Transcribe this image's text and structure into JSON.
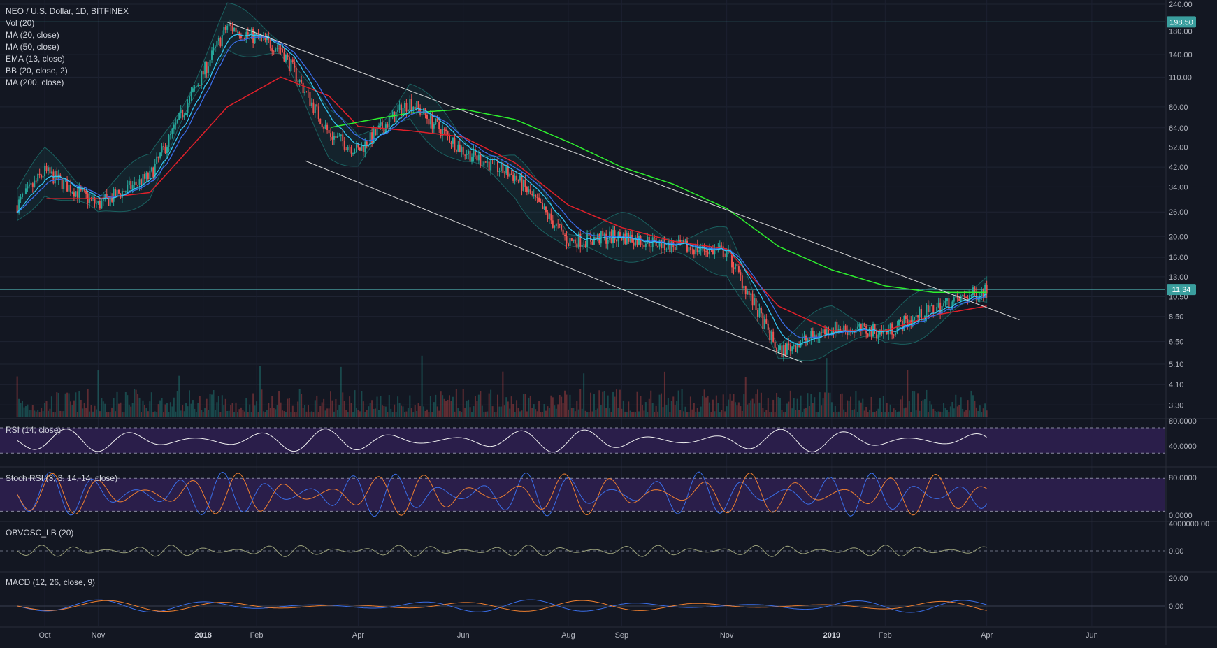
{
  "header": {
    "title": "NEO / U.S. Dollar, 1D, BITFINEX",
    "indicators": [
      "Vol (20)",
      "MA (20, close)",
      "MA (50, close)",
      "EMA (13, close)",
      "BB (20, close, 2)",
      "MA (200, close)"
    ]
  },
  "panes": {
    "rsi_label": "RSI (14, close)",
    "stoch_label": "Stoch RSI (3, 3, 14, 14, close)",
    "obv_label": "OBVOSC_LB (20)",
    "macd_label": "MACD (12, 26, close, 9)"
  },
  "colors": {
    "background": "#131722",
    "up": "#26a69a",
    "down": "#ef5350",
    "ma200": "#2ef02e",
    "ma50": "#e0202a",
    "ema13": "#33c3f0",
    "ma20": "#3a6ee8",
    "bollinger": "#1e7d78",
    "trendline": "#d8d8d8",
    "rsi_band": "#2a1e4a",
    "hline": "#4fb0b0"
  },
  "chart_data": [
    {
      "type": "line",
      "title": "NEO / U.S. Dollar, 1D, BITFINEX",
      "scale": "log",
      "y_ticks": [
        "240.00",
        "180.00",
        "140.00",
        "110.00",
        "80.00",
        "64.00",
        "52.00",
        "42.00",
        "34.00",
        "26.00",
        "20.00",
        "16.00",
        "13.00",
        "10.50",
        "8.50",
        "6.50",
        "5.10",
        "4.10",
        "3.30"
      ],
      "x_ticks": [
        "Oct",
        "Nov",
        "2018",
        "Feb",
        "Apr",
        "Jun",
        "Aug",
        "Sep",
        "Nov",
        "2019",
        "Feb",
        "Apr",
        "Jun"
      ],
      "price_labels": [
        "198.50",
        "11.34"
      ],
      "x": [
        "2017-09-15",
        "2017-10-01",
        "2017-11-01",
        "2017-12-01",
        "2018-01-15",
        "2018-02-15",
        "2018-03-15",
        "2018-04-01",
        "2018-05-01",
        "2018-06-01",
        "2018-07-01",
        "2018-08-01",
        "2018-09-01",
        "2018-10-01",
        "2018-11-01",
        "2018-12-01",
        "2019-01-01",
        "2019-02-01",
        "2019-03-01",
        "2019-04-01"
      ],
      "series": [
        {
          "name": "price",
          "values": [
            28,
            40,
            28,
            38,
            190,
            150,
            60,
            50,
            85,
            50,
            38,
            19,
            20,
            18,
            17,
            5.8,
            7.5,
            7.2,
            9.2,
            11.34
          ]
        },
        {
          "name": "MA (200, close)",
          "values": [
            null,
            null,
            null,
            null,
            null,
            null,
            64,
            68,
            75,
            78,
            70,
            55,
            42,
            35,
            27,
            18,
            14,
            11.8,
            11.0,
            11.0
          ]
        },
        {
          "name": "MA (50, close)",
          "values": [
            null,
            30,
            30,
            32,
            80,
            110,
            90,
            65,
            62,
            58,
            44,
            28,
            22,
            19,
            17.5,
            9.5,
            7.3,
            7.3,
            8.6,
            9.5
          ]
        }
      ]
    }
  ]
}
